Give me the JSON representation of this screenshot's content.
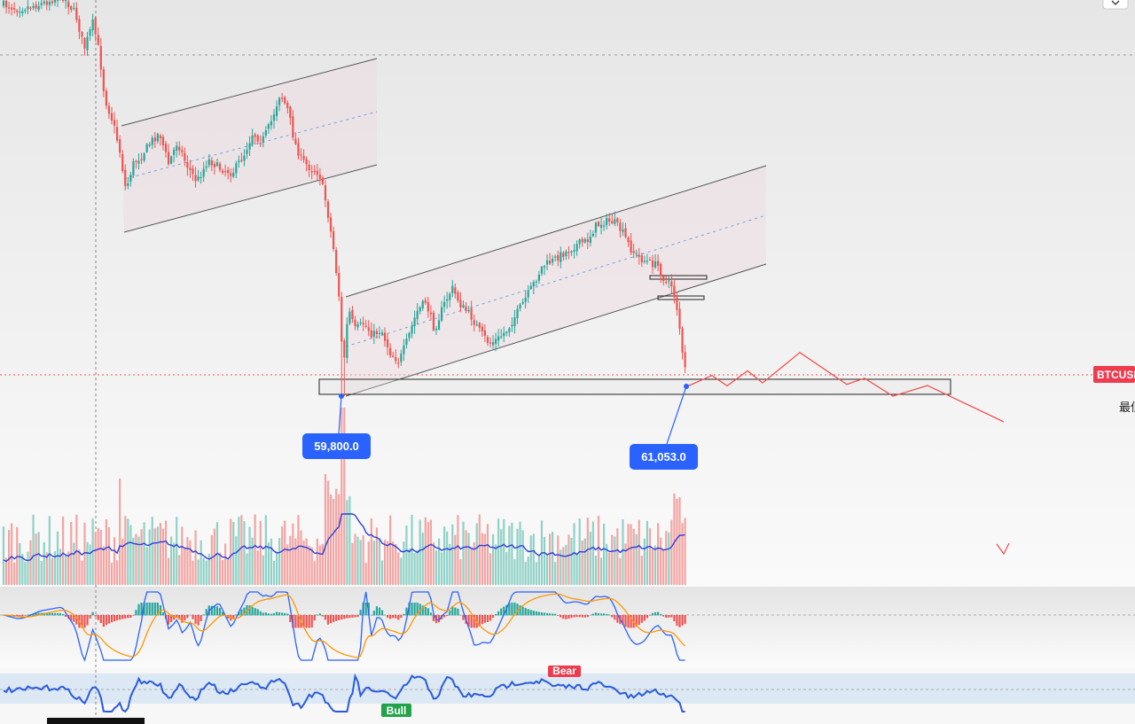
{
  "chart_data": {
    "type": "candlestick",
    "symbol_tag": "BTCUSD",
    "right_axis_text": "最低",
    "colors": {
      "up": "#26a69a",
      "down": "#ef5350",
      "volume_ma": "#2a3fdc",
      "projection": "#ef5350",
      "macd": "#2962ff",
      "signal": "#ff9800",
      "rsi": "#2a5bdc",
      "callout": "#2962ff"
    },
    "annotations": {
      "low_left": "59,800.0",
      "low_right": "61,053.0"
    },
    "indicator_labels": {
      "bear": "Bear",
      "bull": "Bull"
    },
    "projection_price_path": [
      61053,
      62450,
      61120,
      63050,
      61500,
      65400,
      61300,
      62100,
      59800,
      61150,
      56500
    ]
  }
}
